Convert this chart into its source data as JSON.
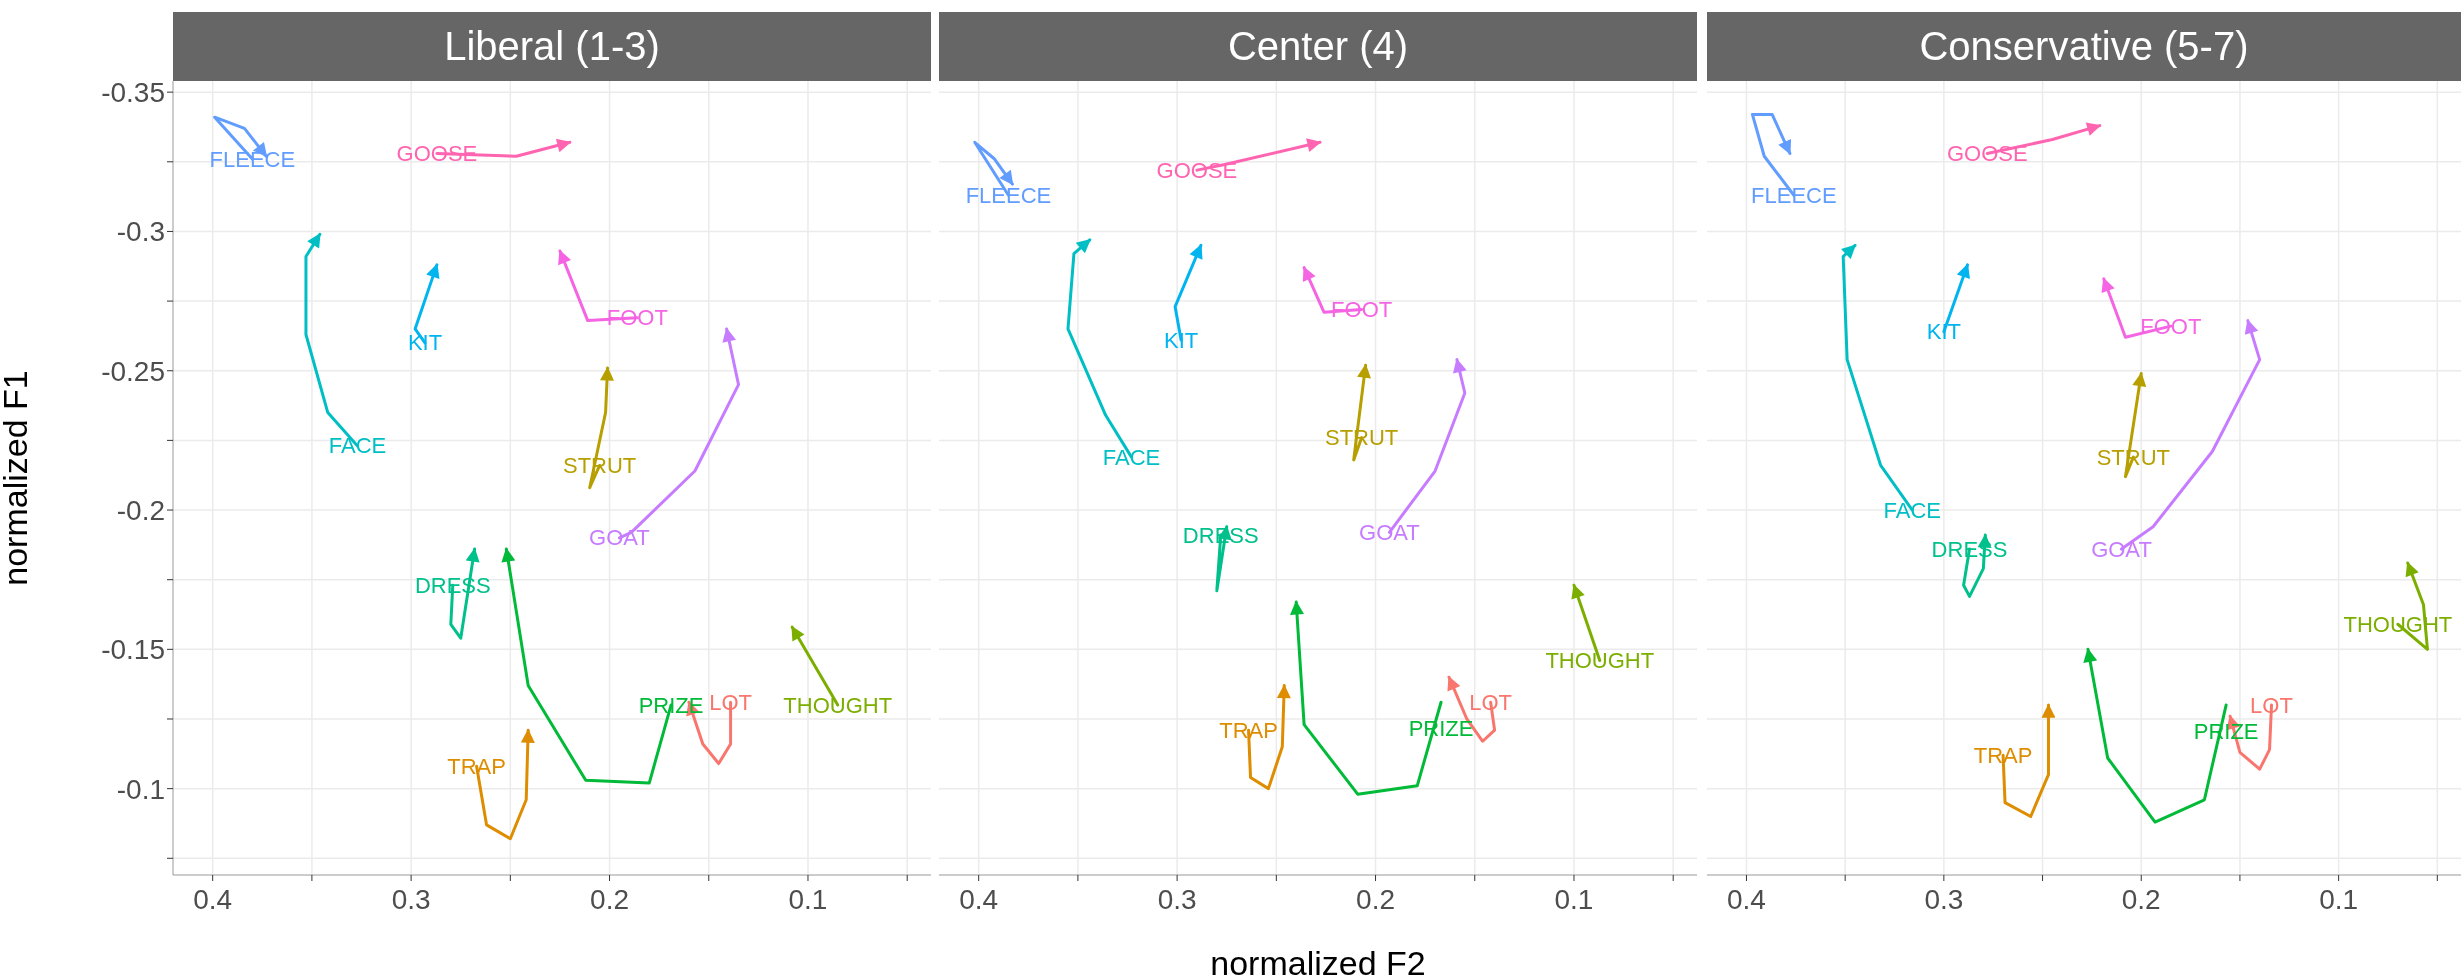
{
  "chart_data": [
    {
      "type": "line",
      "title": "Liberal (1-3)",
      "ylabel": "normalized F1",
      "xlim": [
        0.42,
        0.038
      ],
      "ylim": [
        -0.069,
        -0.354
      ],
      "xticks": [
        0.4,
        {
          "value": 0.35,
          "label": null
        },
        0.3,
        {
          "value": 0.25,
          "label": null
        },
        0.2,
        {
          "value": 0.15,
          "label": null
        },
        0.1,
        {
          "value": 0.05,
          "label": null
        }
      ],
      "yticks": [
        -0.35,
        {
          "value": -0.325,
          "label": null
        },
        -0.3,
        {
          "value": -0.275,
          "label": null
        },
        -0.25,
        {
          "value": -0.225,
          "label": null
        },
        -0.2,
        {
          "value": -0.175,
          "label": null
        },
        -0.15,
        {
          "value": -0.125,
          "label": null
        },
        -0.1,
        {
          "value": -0.075,
          "label": null
        }
      ],
      "grid": true,
      "tick_labels": "xy",
      "series": [
        {
          "name": "LOT",
          "color": "#f8766d",
          "x": [
            0.139,
            0.139,
            0.145,
            0.153,
            0.16
          ],
          "values": [
            -0.131,
            -0.116,
            -0.109,
            -0.116,
            -0.131
          ]
        },
        {
          "name": "TRAP",
          "color": "#de8c00",
          "x": [
            0.267,
            0.262,
            0.25,
            0.242,
            0.241
          ],
          "values": [
            -0.108,
            -0.087,
            -0.082,
            -0.096,
            -0.121
          ]
        },
        {
          "name": "STRUT",
          "color": "#b79f00",
          "x": [
            0.205,
            0.21,
            0.202,
            0.201
          ],
          "values": [
            -0.216,
            -0.208,
            -0.235,
            -0.251
          ]
        },
        {
          "name": "THOUGHT",
          "color": "#7cae00",
          "x": [
            0.085,
            0.108
          ],
          "values": [
            -0.13,
            -0.158
          ]
        },
        {
          "name": "PRIZE",
          "color": "#00ba38",
          "x": [
            0.169,
            0.18,
            0.212,
            0.241,
            0.252
          ],
          "values": [
            -0.13,
            -0.102,
            -0.103,
            -0.137,
            -0.186
          ]
        },
        {
          "name": "DRESS",
          "color": "#00c08b",
          "x": [
            0.279,
            0.28,
            0.275,
            0.268
          ],
          "values": [
            -0.173,
            -0.159,
            -0.154,
            -0.186
          ]
        },
        {
          "name": "FACE",
          "color": "#00bfc4",
          "x": [
            0.327,
            0.342,
            0.353,
            0.353,
            0.346
          ],
          "values": [
            -0.223,
            -0.235,
            -0.263,
            -0.291,
            -0.299
          ]
        },
        {
          "name": "KIT",
          "color": "#00b4f0",
          "x": [
            0.293,
            0.298,
            0.287
          ],
          "values": [
            -0.26,
            -0.265,
            -0.288
          ]
        },
        {
          "name": "FLEECE",
          "color": "#619cff",
          "x": [
            0.38,
            0.399,
            0.384,
            0.373
          ],
          "values": [
            -0.326,
            -0.341,
            -0.337,
            -0.327
          ]
        },
        {
          "name": "GOAT",
          "color": "#c77cff",
          "x": [
            0.195,
            0.189,
            0.157,
            0.135,
            0.141
          ],
          "values": [
            -0.19,
            -0.192,
            -0.214,
            -0.245,
            -0.265
          ]
        },
        {
          "name": "FOOT",
          "color": "#f564e3",
          "x": [
            0.186,
            0.211,
            0.225
          ],
          "values": [
            -0.269,
            -0.268,
            -0.293
          ]
        },
        {
          "name": "GOOSE",
          "color": "#ff64b0",
          "x": [
            0.287,
            0.247,
            0.22
          ],
          "values": [
            -0.328,
            -0.327,
            -0.332
          ]
        }
      ]
    },
    {
      "type": "line",
      "title": "Center (4)",
      "xlabel": "normalized F2",
      "xlim": [
        0.42,
        0.038
      ],
      "ylim": [
        -0.069,
        -0.354
      ],
      "xticks": [
        0.4,
        {
          "value": 0.35,
          "label": null
        },
        0.3,
        {
          "value": 0.25,
          "label": null
        },
        0.2,
        {
          "value": 0.15,
          "label": null
        },
        0.1,
        {
          "value": 0.05,
          "label": null
        }
      ],
      "yticks": [
        -0.35,
        {
          "value": -0.325,
          "label": null
        },
        -0.3,
        {
          "value": -0.275,
          "label": null
        },
        -0.25,
        {
          "value": -0.225,
          "label": null
        },
        -0.2,
        {
          "value": -0.175,
          "label": null
        },
        -0.15,
        {
          "value": -0.125,
          "label": null
        },
        -0.1,
        {
          "value": -0.075,
          "label": null
        }
      ],
      "grid": true,
      "tick_labels": "x",
      "series": [
        {
          "name": "LOT",
          "color": "#f8766d",
          "x": [
            0.142,
            0.14,
            0.146,
            0.154,
            0.163
          ],
          "values": [
            -0.131,
            -0.121,
            -0.117,
            -0.125,
            -0.14
          ]
        },
        {
          "name": "TRAP",
          "color": "#de8c00",
          "x": [
            0.264,
            0.263,
            0.254,
            0.247,
            0.246
          ],
          "values": [
            -0.121,
            -0.104,
            -0.1,
            -0.115,
            -0.137
          ]
        },
        {
          "name": "STRUT",
          "color": "#b79f00",
          "x": [
            0.207,
            0.211,
            0.205
          ],
          "values": [
            -0.226,
            -0.218,
            -0.252
          ]
        },
        {
          "name": "THOUGHT",
          "color": "#7cae00",
          "x": [
            0.087,
            0.1
          ],
          "values": [
            -0.146,
            -0.173
          ]
        },
        {
          "name": "PRIZE",
          "color": "#00ba38",
          "x": [
            0.167,
            0.179,
            0.209,
            0.236,
            0.24
          ],
          "values": [
            -0.131,
            -0.101,
            -0.098,
            -0.123,
            -0.167
          ]
        },
        {
          "name": "DRESS",
          "color": "#00c08b",
          "x": [
            0.278,
            0.28,
            0.275
          ],
          "values": [
            -0.191,
            -0.171,
            -0.194
          ]
        },
        {
          "name": "FACE",
          "color": "#00bfc4",
          "x": [
            0.323,
            0.336,
            0.355,
            0.352,
            0.344
          ],
          "values": [
            -0.219,
            -0.234,
            -0.265,
            -0.292,
            -0.297
          ]
        },
        {
          "name": "KIT",
          "color": "#00b4f0",
          "x": [
            0.298,
            0.301,
            0.288
          ],
          "values": [
            -0.261,
            -0.273,
            -0.295
          ]
        },
        {
          "name": "FLEECE",
          "color": "#619cff",
          "x": [
            0.385,
            0.402,
            0.392,
            0.383
          ],
          "values": [
            -0.313,
            -0.332,
            -0.326,
            -0.317
          ]
        },
        {
          "name": "GOAT",
          "color": "#c77cff",
          "x": [
            0.193,
            0.17,
            0.155,
            0.159
          ],
          "values": [
            -0.192,
            -0.214,
            -0.242,
            -0.254
          ]
        },
        {
          "name": "FOOT",
          "color": "#f564e3",
          "x": [
            0.207,
            0.226,
            0.236
          ],
          "values": [
            -0.272,
            -0.271,
            -0.287
          ]
        },
        {
          "name": "GOOSE",
          "color": "#ff64b0",
          "x": [
            0.29,
            0.276,
            0.228
          ],
          "values": [
            -0.322,
            -0.324,
            -0.332
          ]
        }
      ]
    },
    {
      "type": "line",
      "title": "Conservative (5-7)",
      "xlim": [
        0.42,
        0.038
      ],
      "ylim": [
        -0.069,
        -0.354
      ],
      "xticks": [
        0.4,
        {
          "value": 0.35,
          "label": null
        },
        0.3,
        {
          "value": 0.25,
          "label": null
        },
        0.2,
        {
          "value": 0.15,
          "label": null
        },
        0.1,
        {
          "value": 0.05,
          "label": null
        }
      ],
      "yticks": [
        -0.35,
        {
          "value": -0.325,
          "label": null
        },
        -0.3,
        {
          "value": -0.275,
          "label": null
        },
        -0.25,
        {
          "value": -0.225,
          "label": null
        },
        -0.2,
        {
          "value": -0.175,
          "label": null
        },
        -0.15,
        {
          "value": -0.125,
          "label": null
        },
        -0.1,
        {
          "value": -0.075,
          "label": null
        }
      ],
      "grid": true,
      "tick_labels": "x",
      "series": [
        {
          "name": "LOT",
          "color": "#f8766d",
          "x": [
            0.134,
            0.135,
            0.14,
            0.15,
            0.155
          ],
          "values": [
            -0.13,
            -0.114,
            -0.107,
            -0.113,
            -0.126
          ]
        },
        {
          "name": "TRAP",
          "color": "#de8c00",
          "x": [
            0.27,
            0.269,
            0.256,
            0.247,
            0.247
          ],
          "values": [
            -0.112,
            -0.095,
            -0.09,
            -0.105,
            -0.13
          ]
        },
        {
          "name": "STRUT",
          "color": "#b79f00",
          "x": [
            0.204,
            0.208,
            0.2
          ],
          "values": [
            -0.219,
            -0.212,
            -0.249
          ]
        },
        {
          "name": "THOUGHT",
          "color": "#7cae00",
          "x": [
            0.07,
            0.055,
            0.057,
            0.065
          ],
          "values": [
            -0.159,
            -0.15,
            -0.166,
            -0.181
          ]
        },
        {
          "name": "PRIZE",
          "color": "#00ba38",
          "x": [
            0.157,
            0.168,
            0.193,
            0.217,
            0.227
          ],
          "values": [
            -0.13,
            -0.096,
            -0.088,
            -0.111,
            -0.15
          ]
        },
        {
          "name": "DRESS",
          "color": "#00c08b",
          "x": [
            0.287,
            0.29,
            0.287,
            0.28,
            0.279
          ],
          "values": [
            -0.186,
            -0.173,
            -0.169,
            -0.179,
            -0.191
          ]
        },
        {
          "name": "FACE",
          "color": "#00bfc4",
          "x": [
            0.316,
            0.332,
            0.349,
            0.351,
            0.345
          ],
          "values": [
            -0.2,
            -0.216,
            -0.254,
            -0.291,
            -0.295
          ]
        },
        {
          "name": "KIT",
          "color": "#00b4f0",
          "x": [
            0.3,
            0.288
          ],
          "values": [
            -0.264,
            -0.288
          ]
        },
        {
          "name": "FLEECE",
          "color": "#619cff",
          "x": [
            0.376,
            0.391,
            0.397,
            0.387,
            0.378
          ],
          "values": [
            -0.313,
            -0.327,
            -0.342,
            -0.342,
            -0.328
          ]
        },
        {
          "name": "GOAT",
          "color": "#c77cff",
          "x": [
            0.21,
            0.194,
            0.164,
            0.14,
            0.146
          ],
          "values": [
            -0.186,
            -0.194,
            -0.221,
            -0.254,
            -0.268
          ]
        },
        {
          "name": "FOOT",
          "color": "#f564e3",
          "x": [
            0.185,
            0.208,
            0.219
          ],
          "values": [
            -0.266,
            -0.262,
            -0.283
          ]
        },
        {
          "name": "GOOSE",
          "color": "#ff64b0",
          "x": [
            0.278,
            0.245,
            0.221
          ],
          "values": [
            -0.328,
            -0.333,
            -0.338
          ]
        }
      ]
    }
  ]
}
